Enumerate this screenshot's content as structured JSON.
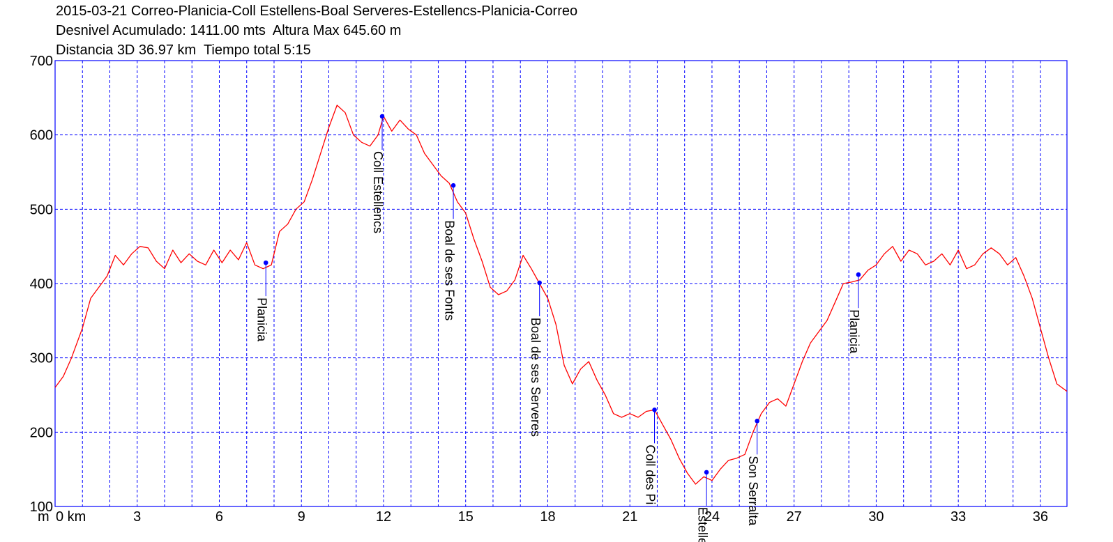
{
  "header": {
    "line1": "2015-03-21 Correo-Planicia-Coll Estellens-Boal Serveres-Estellencs-Planicia-Correo",
    "line2": "Desnivel Acumulado: 1411.00 mts  Altura Max 645.60 m",
    "line3": "Distancia 3D 36.97 km  Tiempo total 5:15"
  },
  "chart_data": {
    "type": "line",
    "title": "2015-03-21 Correo-Planicia-Coll Estellens-Boal Serveres-Estellencs-Planicia-Correo",
    "xlabel_prefix": "m",
    "x_unit": "km",
    "xlim": [
      0,
      36.97
    ],
    "ylim": [
      100,
      700
    ],
    "x_ticks": [
      0,
      3,
      6,
      9,
      12,
      15,
      18,
      21,
      24,
      27,
      30,
      33,
      36
    ],
    "x_tick_labels": [
      "0 km",
      "3",
      "6",
      "9",
      "12",
      "15",
      "18",
      "21",
      "24",
      "27",
      "30",
      "33",
      "36"
    ],
    "y_ticks": [
      100,
      200,
      300,
      400,
      500,
      600,
      700
    ],
    "y_tick_labels": [
      "100",
      "200",
      "300",
      "400",
      "500",
      "600",
      "700"
    ],
    "grid": true,
    "colors": {
      "line": "#ff0000",
      "grid": "#0000ff",
      "frame": "#0000ff",
      "waypoint": "#0000ff"
    },
    "series": [
      {
        "x": [
          0,
          0.3,
          0.6,
          1,
          1.3,
          1.6,
          1.9,
          2.2,
          2.5,
          2.8,
          3.1,
          3.4,
          3.7,
          4,
          4.3,
          4.6,
          4.9,
          5.2,
          5.5,
          5.8,
          6.1,
          6.4,
          6.7,
          7,
          7.3,
          7.6,
          7.9,
          8.2,
          8.5,
          8.8,
          9.1,
          9.4,
          9.7,
          10,
          10.3,
          10.6,
          10.9,
          11.2,
          11.5,
          11.8,
          12,
          12.3,
          12.6,
          12.9,
          13.2,
          13.5,
          13.8,
          14.1,
          14.4,
          14.7,
          15,
          15.3,
          15.6,
          15.9,
          16.2,
          16.5,
          16.8,
          17.1,
          17.4,
          17.7,
          18,
          18.3,
          18.6,
          18.9,
          19.2,
          19.5,
          19.8,
          20.1,
          20.4,
          20.7,
          21,
          21.3,
          21.6,
          21.9,
          22.2,
          22.5,
          22.8,
          23.1,
          23.4,
          23.7,
          24,
          24.3,
          24.6,
          24.9,
          25.2,
          25.5,
          25.8,
          26.1,
          26.4,
          26.7,
          27,
          27.3,
          27.6,
          27.9,
          28.2,
          28.5,
          28.8,
          29.1,
          29.4,
          29.7,
          30,
          30.3,
          30.6,
          30.9,
          31.2,
          31.5,
          31.8,
          32.1,
          32.4,
          32.7,
          33,
          33.3,
          33.6,
          33.9,
          34.2,
          34.5,
          34.8,
          35.1,
          35.4,
          35.7,
          36,
          36.3,
          36.6,
          36.97
        ],
        "y": [
          260,
          275,
          300,
          340,
          380,
          395,
          410,
          438,
          425,
          440,
          450,
          448,
          430,
          420,
          445,
          428,
          440,
          430,
          425,
          445,
          428,
          445,
          432,
          455,
          425,
          420,
          425,
          470,
          480,
          500,
          510,
          540,
          575,
          610,
          640,
          630,
          600,
          590,
          585,
          600,
          625,
          605,
          620,
          608,
          600,
          575,
          560,
          545,
          535,
          510,
          495,
          460,
          430,
          395,
          385,
          390,
          405,
          438,
          420,
          400,
          380,
          345,
          290,
          265,
          285,
          295,
          270,
          250,
          225,
          220,
          225,
          220,
          228,
          230,
          210,
          190,
          165,
          145,
          130,
          140,
          135,
          150,
          162,
          165,
          170,
          200,
          225,
          240,
          245,
          235,
          265,
          295,
          320,
          335,
          350,
          375,
          400,
          402,
          405,
          418,
          425,
          440,
          450,
          430,
          445,
          440,
          425,
          430,
          440,
          425,
          445,
          420,
          425,
          440,
          448,
          440,
          425,
          435,
          410,
          380,
          340,
          300,
          265,
          255
        ]
      }
    ],
    "waypoints": [
      {
        "name": "Planicia",
        "x": 7.7,
        "y": 428
      },
      {
        "name": "Coll Estellencs",
        "x": 11.95,
        "y": 625
      },
      {
        "name": "Boal de ses Fonts",
        "x": 14.55,
        "y": 532
      },
      {
        "name": "Boal de ses Serveres",
        "x": 17.7,
        "y": 401
      },
      {
        "name": "Coll des Pi",
        "x": 21.9,
        "y": 230
      },
      {
        "name": "Estellencs",
        "x": 23.8,
        "y": 146
      },
      {
        "name": "Son Serralta",
        "x": 25.65,
        "y": 215
      },
      {
        "name": "Planicia",
        "x": 29.35,
        "y": 412
      }
    ]
  }
}
